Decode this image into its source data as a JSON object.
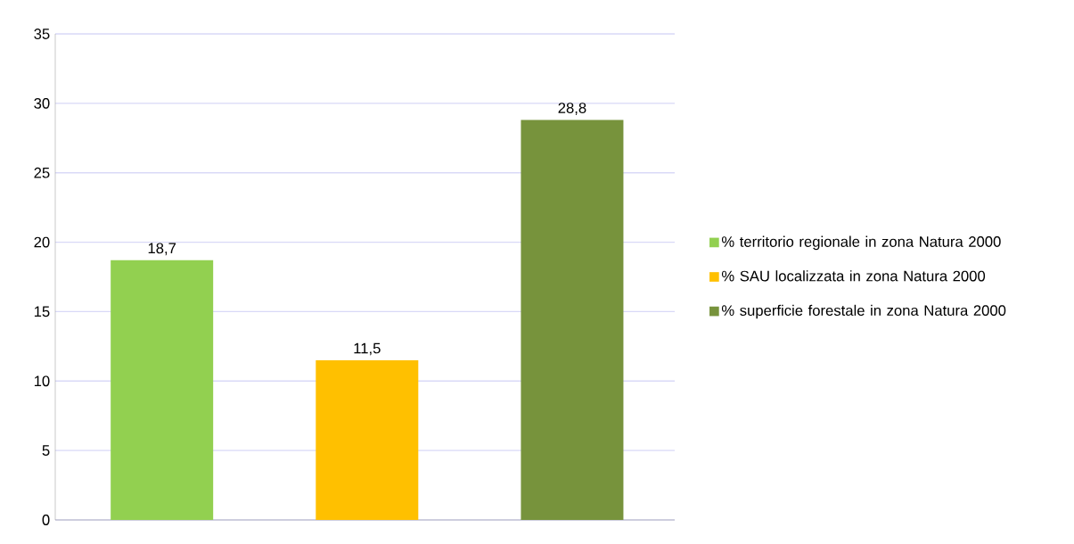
{
  "chart_data": {
    "type": "bar",
    "categories": [
      null,
      null,
      null
    ],
    "series": [
      {
        "name": "% territorio regionale in zona Natura 2000",
        "color": "#92d050",
        "values": [
          18.7,
          null,
          null
        ],
        "value_labels": [
          "18,7",
          null,
          null
        ]
      },
      {
        "name": "% SAU localizzata in zona Natura 2000",
        "color": "#ffc000",
        "values": [
          null,
          11.5,
          null
        ],
        "value_labels": [
          null,
          "11,5",
          null
        ]
      },
      {
        "name": "% superficie forestale in zona Natura 2000",
        "color": "#77933c",
        "values": [
          null,
          null,
          28.8
        ],
        "value_labels": [
          null,
          null,
          "28,8"
        ]
      }
    ],
    "ylim": [
      0,
      35
    ],
    "yticks": [
      0,
      5,
      10,
      15,
      20,
      25,
      30,
      35
    ],
    "grid": "y",
    "legend": "right"
  }
}
